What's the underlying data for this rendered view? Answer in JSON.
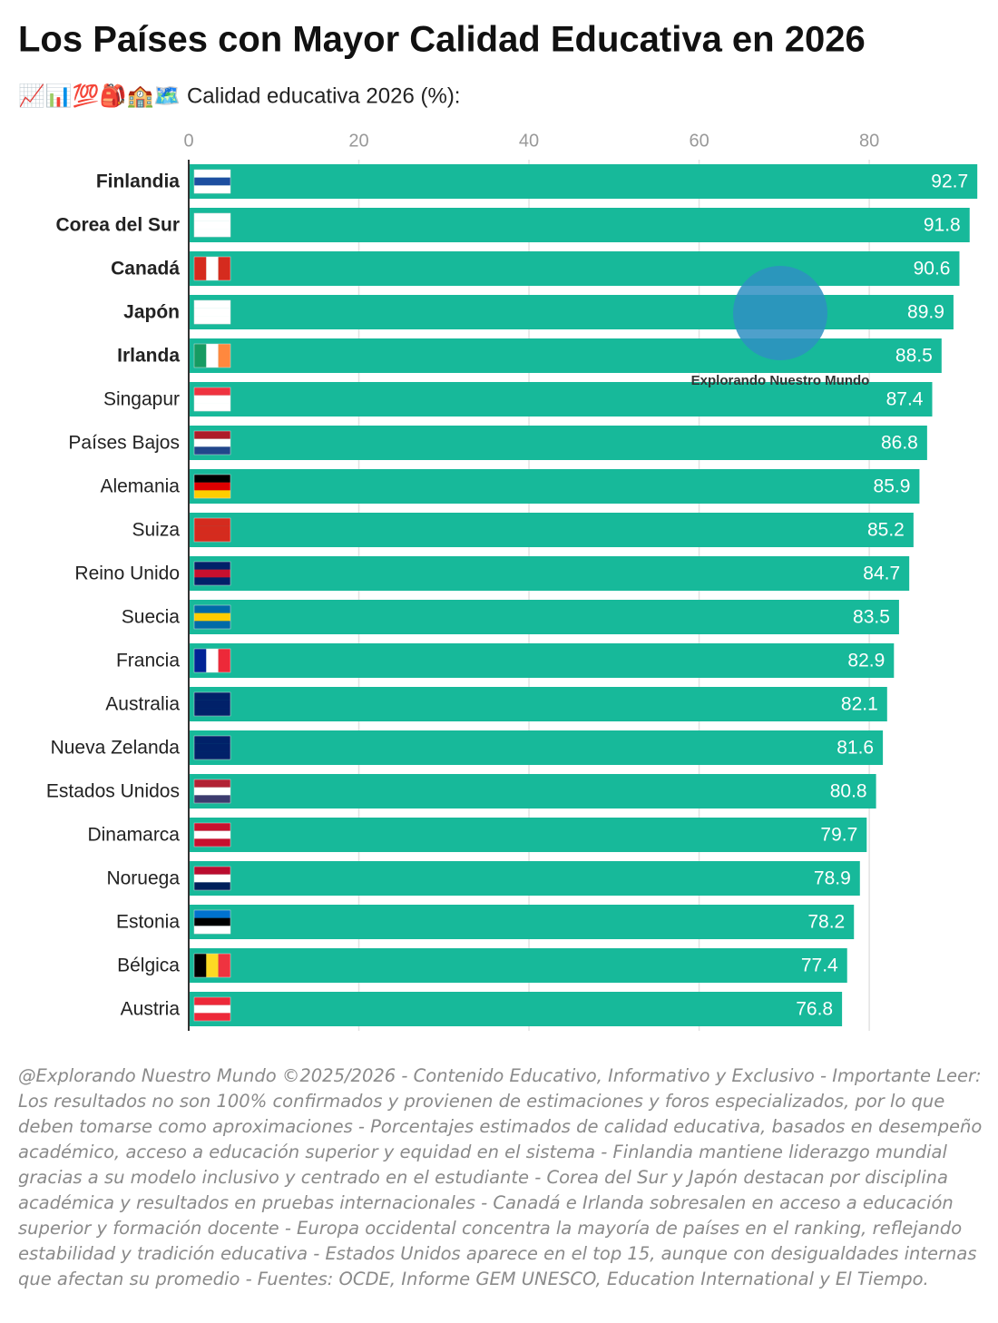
{
  "chart_data": {
    "type": "barh",
    "title": "Los Países con Mayor Calidad Educativa en 2026",
    "subtitle": "📈📊💯🎒🏫🗺️ Calidad educativa 2026 (%):",
    "categories": [
      "Finlandia",
      "Corea del Sur",
      "Canadá",
      "Japón",
      "Irlanda",
      "Singapur",
      "Países Bajos",
      "Alemania",
      "Suiza",
      "Reino Unido",
      "Suecia",
      "Francia",
      "Australia",
      "Nueva Zelanda",
      "Estados Unidos",
      "Dinamarca",
      "Noruega",
      "Estonia",
      "Bélgica",
      "Austria"
    ],
    "values": [
      92.7,
      91.8,
      90.6,
      89.9,
      88.5,
      87.4,
      86.8,
      85.9,
      85.2,
      84.7,
      83.5,
      82.9,
      82.1,
      81.6,
      80.8,
      79.7,
      78.9,
      78.2,
      77.4,
      76.8
    ],
    "color": "#17b99a",
    "xlim": [
      0,
      93
    ],
    "xticks": [
      0,
      20,
      40,
      60,
      80
    ],
    "grid": true,
    "watermark": "Explorando Nuestro Mundo",
    "footnote": "@Explorando Nuestro Mundo ©2025/2026 - Contenido Educativo, Informativo y Exclusivo - Importante Leer: Los resultados no son 100% confirmados y provienen de estimaciones y foros especializados, por lo que deben tomarse como aproximaciones - Porcentajes estimados de calidad educativa, basados en desempeño académico, acceso a educación superior y equidad en el sistema - Finlandia mantiene liderazgo mundial gracias a su modelo inclusivo y centrado en el estudiante - Corea del Sur y Japón destacan por disciplina académica y resultados en pruebas internacionales - Canadá e Irlanda sobresalen en acceso a educación superior y formación docente - Europa occidental concentra la mayoría de países en el ranking, reflejando estabilidad y tradición educativa - Estados Unidos aparece en el top 15, aunque con desigualdades internas que afectan su promedio - Fuentes: OCDE, Informe GEM UNESCO, Education International y El Tiempo."
  }
}
